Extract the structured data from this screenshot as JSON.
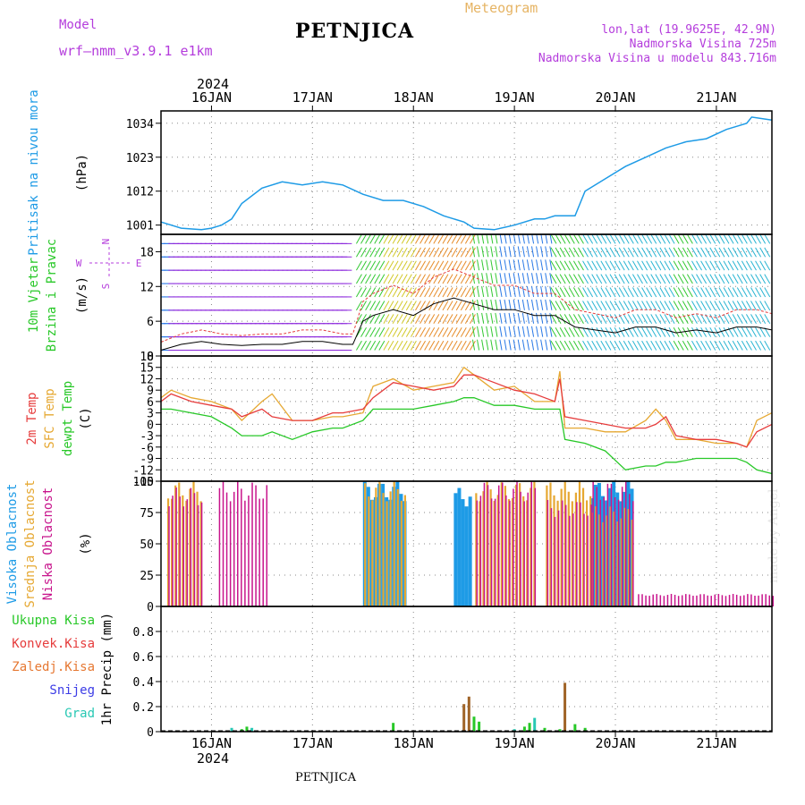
{
  "header": {
    "model_label": "Model",
    "model_name": "wrf—nmm_v3.9.1  e1km",
    "meteogram_label": "Meteogram",
    "station": "PETNJICA",
    "coords": "lon,lat (19.9625E, 42.9N)",
    "altitude": "Nadmorska Visina 725m",
    "model_altitude": "Nadmorska Visina u modelu 843.716m"
  },
  "footer_station": "PETNJICA",
  "credit": "made by Angel",
  "time_axis": {
    "year": "2024",
    "days": [
      "16JAN",
      "17JAN",
      "18JAN",
      "19JAN",
      "20JAN",
      "21JAN"
    ]
  },
  "colors": {
    "pressure": "#1e9be6",
    "cloud_high": "#1e9be6",
    "cloud_mid": "#e6a832",
    "cloud_low": "#c8148c",
    "temp_2m": "#e63c3c",
    "temp_sfc": "#e6a832",
    "temp_dew": "#28c828",
    "precip_total": "#28c828",
    "precip_conv": "#e63c3c",
    "precip_frozen": "#e67832",
    "precip_snow": "#3c3ce6",
    "precip_grad": "#28c8b4",
    "wind_label": "#28c828",
    "legend_purple": "#b43cdc"
  },
  "panels": {
    "pressure": {
      "label": "Pritisak na nivou mora",
      "unit": "(hPa)",
      "ticks": [
        "1001",
        "1012",
        "1023",
        "1034"
      ]
    },
    "wind": {
      "label_a": "10m Vjetar",
      "label_b": "Brzina i Pravac",
      "unit": "(m/s)",
      "ticks": [
        "0",
        "6",
        "12",
        "18"
      ],
      "compass": {
        "n": "N",
        "s": "S",
        "e": "E",
        "w": "W"
      }
    },
    "temp": {
      "label_2m": "2m Temp",
      "label_sfc": "SFC Temp",
      "label_dew": "dewpt Temp",
      "unit": "(C)",
      "ticks": [
        "-15",
        "-12",
        "-9",
        "-6",
        "-3",
        "0",
        "3",
        "6",
        "9",
        "12",
        "15",
        "18"
      ]
    },
    "cloud": {
      "label_high": "Visoka Oblacnost",
      "label_mid": "Srednja Oblacnost",
      "label_low": "Niska Oblacnost",
      "unit": "(%)",
      "ticks": [
        "0",
        "25",
        "50",
        "75",
        "100"
      ]
    },
    "precip": {
      "label_total": "Ukupna Kisa",
      "label_conv": "Konvek.Kisa",
      "label_frozen": "Zaledj.Kisa",
      "label_snow": "Snijeg",
      "label_grad": "Grad",
      "unit": "1hr Precip (mm)",
      "ticks": [
        "0",
        "0.2",
        "0.4",
        "0.6",
        "0.8"
      ]
    }
  },
  "chart_data": [
    {
      "type": "line",
      "ylabel": "Pritisak na nivou mora (hPa)",
      "xlim_days": [
        15.5,
        21.55
      ],
      "ylim": [
        998,
        1038
      ],
      "x": [
        15.5,
        15.7,
        15.9,
        16.0,
        16.1,
        16.2,
        16.3,
        16.5,
        16.7,
        16.9,
        17.1,
        17.3,
        17.5,
        17.7,
        17.9,
        18.1,
        18.3,
        18.5,
        18.6,
        18.8,
        19.0,
        19.2,
        19.3,
        19.4,
        19.5,
        19.6,
        19.7,
        19.9,
        20.1,
        20.3,
        20.5,
        20.7,
        20.9,
        21.1,
        21.2,
        21.3,
        21.35,
        21.55
      ],
      "series": [
        {
          "values": [
            1002,
            1000,
            999.5,
            1000,
            1001,
            1003,
            1008,
            1013,
            1015,
            1014,
            1015,
            1014,
            1011,
            1009,
            1009,
            1007,
            1004,
            1002,
            1000,
            999.5,
            1001,
            1003,
            1003,
            1004,
            1004,
            1004,
            1012,
            1016,
            1020,
            1023,
            1026,
            1028,
            1029,
            1032,
            1033,
            1034,
            1036,
            1035
          ]
        }
      ]
    },
    {
      "type": "line",
      "ylabel": "10m Vjetar Brzina i Pravac (m/s)",
      "ylim": [
        0,
        21
      ],
      "x": [
        15.5,
        15.7,
        15.9,
        16.1,
        16.3,
        16.5,
        16.7,
        16.9,
        17.1,
        17.3,
        17.4,
        17.5,
        17.6,
        17.8,
        18.0,
        18.2,
        18.4,
        18.6,
        18.8,
        19.0,
        19.2,
        19.4,
        19.6,
        19.8,
        20.0,
        20.2,
        20.4,
        20.6,
        20.8,
        21.0,
        21.2,
        21.4,
        21.55
      ],
      "series": [
        {
          "values": [
            1,
            2,
            2.5,
            2,
            1.8,
            2,
            2,
            2.5,
            2.5,
            2,
            2,
            6,
            7,
            8,
            7,
            9,
            10,
            9,
            8,
            8,
            7,
            7,
            5,
            4.5,
            4,
            5,
            5,
            4,
            4.5,
            4,
            5,
            5,
            4.5
          ]
        }
      ]
    },
    {
      "type": "line",
      "ylabel": "Temperature (C)",
      "ylim": [
        -15,
        18
      ],
      "x": [
        15.5,
        15.6,
        15.8,
        16.0,
        16.2,
        16.3,
        16.5,
        16.6,
        16.8,
        17.0,
        17.2,
        17.3,
        17.5,
        17.6,
        17.8,
        18.0,
        18.2,
        18.4,
        18.5,
        18.6,
        18.8,
        19.0,
        19.2,
        19.3,
        19.4,
        19.45,
        19.5,
        19.7,
        19.9,
        20.1,
        20.3,
        20.4,
        20.5,
        20.6,
        20.8,
        21.0,
        21.2,
        21.3,
        21.4,
        21.55
      ],
      "series": [
        {
          "name": "2m Temp",
          "values": [
            6,
            8,
            6,
            5,
            4,
            2,
            4,
            2,
            1,
            1,
            3,
            3,
            4,
            7,
            11,
            10,
            9,
            10,
            13,
            13,
            11,
            9,
            8,
            7,
            6,
            12,
            2,
            1,
            0,
            -1,
            -1,
            0,
            2,
            -3,
            -4,
            -4,
            -5,
            -6,
            -2,
            0
          ]
        },
        {
          "name": "SFC Temp",
          "values": [
            7,
            9,
            7,
            6,
            4,
            1,
            6,
            8,
            1,
            1,
            2,
            2,
            3,
            10,
            12,
            9,
            10,
            11,
            15,
            13,
            9,
            10,
            6,
            6,
            6,
            14,
            -1,
            -1,
            -2,
            -2,
            1,
            4,
            1,
            -4,
            -4,
            -5,
            -5,
            -6,
            1,
            3
          ]
        },
        {
          "name": "dewpt Temp",
          "values": [
            4,
            4,
            3,
            2,
            -1,
            -3,
            -3,
            -2,
            -4,
            -2,
            -1,
            -1,
            1,
            4,
            4,
            4,
            5,
            6,
            7,
            7,
            5,
            5,
            4,
            4,
            4,
            4,
            -4,
            -5,
            -7,
            -12,
            -11,
            -11,
            -10,
            -10,
            -9,
            -9,
            -9,
            -10,
            -12,
            -13
          ]
        }
      ]
    },
    {
      "type": "bar",
      "ylabel": "Oblacnost (%)",
      "ylim": [
        0,
        100
      ],
      "x_blocks": [
        [
          15.55,
          15.88
        ],
        [
          16.05,
          16.55
        ],
        [
          17.5,
          17.92
        ],
        [
          18.4,
          18.55
        ],
        [
          18.6,
          19.2
        ],
        [
          19.3,
          19.75
        ],
        [
          19.75,
          20.15
        ],
        [
          20.2,
          21.55
        ]
      ],
      "series": [
        {
          "name": "Visoka Oblacnost",
          "blocks": [
            0,
            0,
            100,
            95,
            0,
            0,
            100,
            0
          ]
        },
        {
          "name": "Srednja Oblacnost",
          "blocks": [
            100,
            0,
            100,
            0,
            100,
            100,
            80,
            0
          ]
        },
        {
          "name": "Niska Oblacnost",
          "blocks": [
            95,
            100,
            0,
            0,
            100,
            85,
            100,
            10
          ]
        }
      ]
    },
    {
      "type": "bar",
      "ylabel": "1hr Precip (mm)",
      "ylim": [
        0,
        1.0
      ],
      "x": [
        16.2,
        16.3,
        16.35,
        16.4,
        17.8,
        18.5,
        18.55,
        18.6,
        18.65,
        19.0,
        19.1,
        19.15,
        19.2,
        19.3,
        19.45,
        19.5,
        19.6,
        19.7
      ],
      "series": [
        {
          "name": "Ukupna Kisa",
          "values": [
            0.03,
            0.02,
            0.04,
            0.03,
            0.07,
            0.22,
            0.28,
            0.12,
            0.08,
            0.02,
            0.04,
            0.07,
            0.11,
            0.03,
            0.02,
            0.39,
            0.06,
            0.03
          ]
        }
      ]
    }
  ]
}
